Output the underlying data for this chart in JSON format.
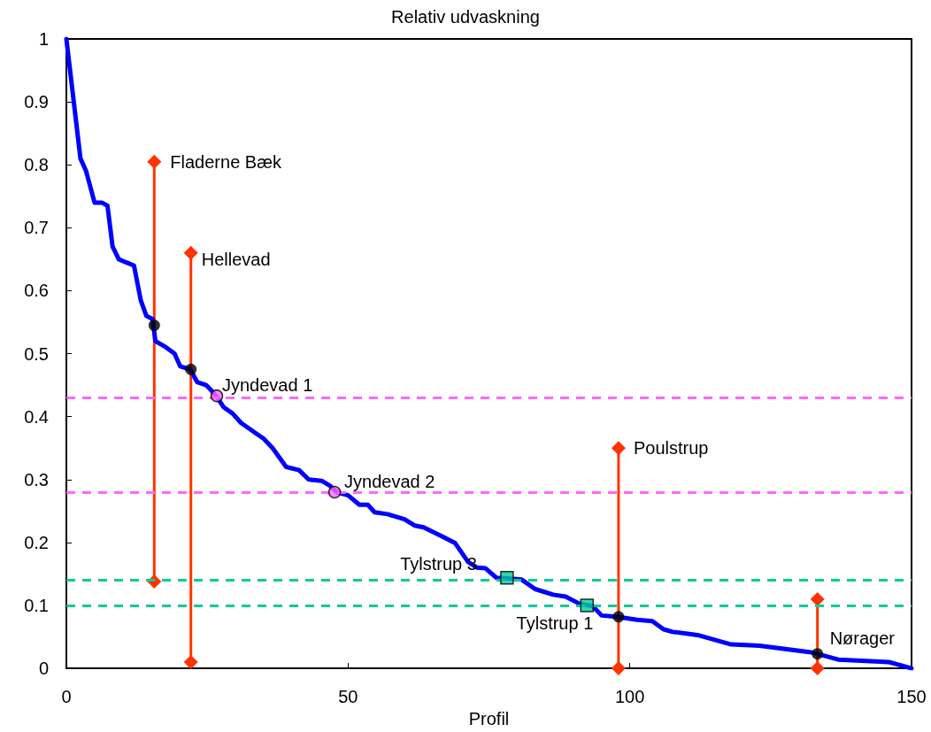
{
  "chart_data": {
    "type": "line",
    "title": "Relativ udvaskning",
    "xlabel": "Profil",
    "xlim": [
      0,
      150
    ],
    "xticks": [
      0,
      50,
      100,
      150
    ],
    "ylim": [
      0,
      1
    ],
    "yticks": [
      0,
      0.1,
      0.2,
      0.3,
      0.4,
      0.5,
      0.6,
      0.7,
      0.8,
      0.9,
      1
    ],
    "grid": false,
    "line_style": "solid",
    "series": [
      {
        "type": "line",
        "color": "#0000ff",
        "marker": "none",
        "x": [
          0,
          2.5,
          3.5,
          5,
          6.3,
          7.3,
          8.2,
          9.3,
          10.6,
          12,
          13.2,
          14.2,
          15.3,
          15.8,
          17.7,
          19.2,
          20.2,
          22,
          23.2,
          24.8,
          25.9,
          26.8,
          27.9,
          29.5,
          31,
          33.4,
          35,
          36.6,
          39,
          41.3,
          43,
          45.3,
          46.8,
          48,
          50,
          52,
          53.5,
          54.7,
          57,
          60,
          61.8,
          63.4,
          66.6,
          69,
          71.3,
          72.9,
          74.4,
          76.3,
          78.3,
          80.8,
          83.2,
          86.4,
          88.6,
          91,
          93.4,
          95,
          97.6,
          101.3,
          104,
          106,
          107.6,
          112,
          118,
          123,
          132.5,
          137,
          146,
          150
        ],
        "values": [
          1,
          0.81,
          0.79,
          0.74,
          0.74,
          0.735,
          0.67,
          0.65,
          0.645,
          0.64,
          0.585,
          0.56,
          0.555,
          0.52,
          0.51,
          0.5,
          0.48,
          0.475,
          0.455,
          0.45,
          0.44,
          0.43,
          0.415,
          0.405,
          0.39,
          0.375,
          0.365,
          0.35,
          0.32,
          0.315,
          0.3,
          0.298,
          0.29,
          0.28,
          0.275,
          0.26,
          0.26,
          0.248,
          0.245,
          0.237,
          0.227,
          0.224,
          0.21,
          0.199,
          0.169,
          0.16,
          0.159,
          0.144,
          0.143,
          0.141,
          0.126,
          0.117,
          0.114,
          0.103,
          0.099,
          0.084,
          0.082,
          0.077,
          0.075,
          0.062,
          0.058,
          0.053,
          0.038,
          0.036,
          0.025,
          0.014,
          0.01,
          0
        ]
      },
      {
        "type": "line",
        "color": "#ff3300",
        "marker": "diamond",
        "x": [
          15.6,
          15.6
        ],
        "values": [
          0.805,
          0.138
        ]
      },
      {
        "type": "line",
        "color": "#ff3300",
        "marker": "diamond",
        "x": [
          22.1,
          22.1
        ],
        "values": [
          0.66,
          0.01
        ]
      },
      {
        "type": "line",
        "color": "#ff3300",
        "marker": "diamond",
        "x": [
          98,
          98
        ],
        "values": [
          0.35,
          0
        ]
      },
      {
        "type": "line",
        "color": "#ff3300",
        "marker": "diamond",
        "x": [
          133.3,
          133.3
        ],
        "values": [
          0.11,
          0
        ]
      },
      {
        "type": "scatter",
        "color": "#000000",
        "marker": "circle",
        "x": [
          15.6,
          22.1,
          98,
          133.3
        ],
        "values": [
          0.545,
          0.475,
          0.082,
          0.023
        ]
      },
      {
        "type": "scatter",
        "color": "#ff66ff",
        "marker": "circle",
        "x": [
          26.7,
          47.6
        ],
        "values": [
          0.433,
          0.28
        ]
      },
      {
        "type": "scatter",
        "color": "#00cc99",
        "marker": "square",
        "x": [
          78.2,
          92.4
        ],
        "values": [
          0.144,
          0.1
        ]
      }
    ],
    "ref_lines": [
      {
        "axis": "y",
        "value": 0.43,
        "color": "#ff66ff",
        "line_style": "dashed"
      },
      {
        "axis": "y",
        "value": 0.28,
        "color": "#ff66ff",
        "line_style": "dashed"
      },
      {
        "axis": "y",
        "value": 0.14,
        "color": "#00cc99",
        "line_style": "dashed"
      },
      {
        "axis": "y",
        "value": 0.1,
        "color": "#00cc99",
        "line_style": "dashed"
      }
    ],
    "annotations": [
      {
        "text": "Fladerne Bæk",
        "x": 15.6,
        "y": 0.805
      },
      {
        "text": "Hellevad",
        "x": 22.1,
        "y": 0.66
      },
      {
        "text": "Jyndevad 1",
        "x": 26.7,
        "y": 0.433
      },
      {
        "text": "Jyndevad 2",
        "x": 47.6,
        "y": 0.28
      },
      {
        "text": "Tylstrup 3",
        "x": 78.2,
        "y": 0.144
      },
      {
        "text": "Poulstrup",
        "x": 98,
        "y": 0.35
      },
      {
        "text": "Tylstrup 1",
        "x": 92.4,
        "y": 0.1
      },
      {
        "text": "Nørager",
        "x": 133.3,
        "y": 0.023
      }
    ]
  }
}
